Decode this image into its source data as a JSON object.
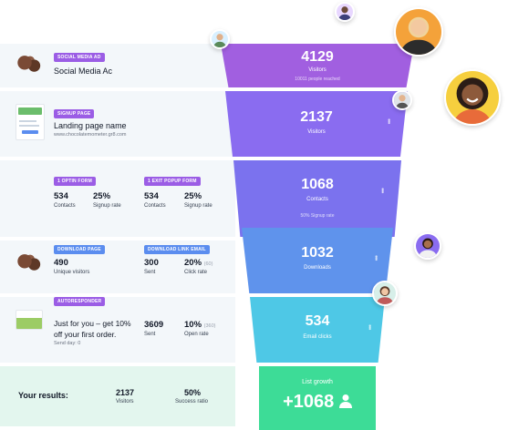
{
  "rows": {
    "social": {
      "tag": "SOCIAL MEDIA AD",
      "title": "Social Media Ac"
    },
    "landing": {
      "tag": "SIGNUP PAGE",
      "title": "Landing page name",
      "url": "www.chocolatemometer.gr8.com"
    },
    "optin": {
      "tag1": "1 OPTIN FORM",
      "tag2": "1 EXIT POPUP FORM",
      "stat1_value": "534",
      "stat1_label": "Contacts",
      "stat2_value": "25%",
      "stat2_label": "Signup rate",
      "stat3_value": "534",
      "stat3_label": "Contacts",
      "stat4_value": "25%",
      "stat4_label": "Signup rate"
    },
    "download": {
      "tag1": "DOWNLOAD PAGE",
      "tag2": "DOWNLOAD LINK EMAIL",
      "stat1_value": "490",
      "stat1_label": "Unique visitors",
      "stat2_value": "300",
      "stat2_label": "Sent",
      "stat3_value": "20%",
      "stat3_suffix": "(60)",
      "stat3_label": "Click rate"
    },
    "autoresponder": {
      "tag": "AUTORESPONDER",
      "title_line1": "Just for you – get 10%",
      "title_line2": "off your first order.",
      "send_day": "Send day: 0",
      "stat1_value": "3609",
      "stat1_label": "Sent",
      "stat2_value": "10%",
      "stat2_suffix": "(360)",
      "stat2_label": "Open rate"
    },
    "results": {
      "label": "Your results:",
      "stat1_value": "2137",
      "stat1_label": "Visitors",
      "stat2_value": "50%",
      "stat2_label": "Success ratio"
    }
  },
  "funnel": [
    {
      "value": "4129",
      "label": "Visitors",
      "note": "10011 people reached",
      "color": "#a15fe0"
    },
    {
      "value": "2137",
      "label": "Visitors",
      "note": "",
      "color": "#8a6cf0"
    },
    {
      "value": "1068",
      "label": "Contacts",
      "note": "50% Signup rate",
      "color": "#7b72ee"
    },
    {
      "value": "1032",
      "label": "Downloads",
      "note": "",
      "color": "#5f93ec"
    },
    {
      "value": "534",
      "label": "Email clicks",
      "note": "",
      "color": "#4ec8e6"
    }
  ],
  "growth": {
    "label": "List growth",
    "value": "+1068",
    "icon": "user-icon",
    "color": "#3ddc97"
  },
  "icons": {
    "menu": "more-vertical-icon"
  }
}
